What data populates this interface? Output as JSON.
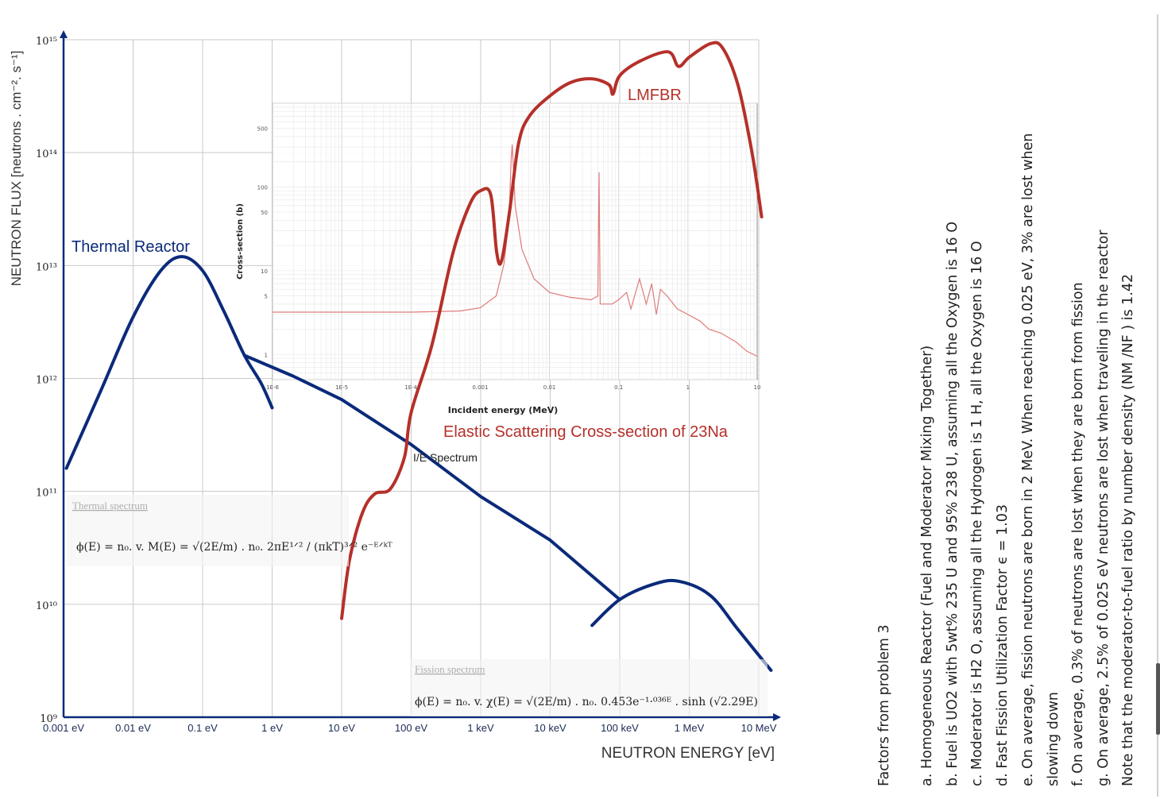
{
  "chart_data": {
    "type": "line",
    "xlabel": "NEUTRON ENERGY [eV]",
    "ylabel": "NEUTRON FLUX [neutrons . cm⁻². s⁻¹]",
    "x_scale": "log",
    "y_scale": "log",
    "xlim": [
      0.001,
      10000000
    ],
    "ylim": [
      1000000000,
      1000000000000000
    ],
    "x_ticks": [
      "0.001 eV",
      "0.01 eV",
      "0.1 eV",
      "1 eV",
      "10 eV",
      "100 eV",
      "1 keV",
      "10 keV",
      "100 keV",
      "1 MeV",
      "10 MeV"
    ],
    "y_ticks": [
      "10⁹",
      "10¹⁰",
      "10¹¹",
      "10¹²",
      "10¹³",
      "10¹⁴",
      "10¹⁵"
    ],
    "grid": true,
    "series": [
      {
        "name": "Thermal Reactor",
        "color": "#0b2a7a",
        "points": [
          [
            0.0011,
            160000000000.0
          ],
          [
            0.0035,
            800000000000.0
          ],
          [
            0.01,
            3500000000000.0
          ],
          [
            0.025,
            9000000000000.0
          ],
          [
            0.05,
            12000000000000.0
          ],
          [
            0.1,
            9000000000000.0
          ],
          [
            0.2,
            4000000000000.0
          ],
          [
            0.4,
            1600000000000.0
          ],
          [
            0.7,
            900000000000.0
          ],
          [
            1.0,
            550000000000.0
          ]
        ]
      },
      {
        "name": "1/E Spectrum",
        "color": "#0b2a7a",
        "points": [
          [
            0.4,
            1600000000000.0
          ],
          [
            2,
            1050000000000.0
          ],
          [
            10,
            650000000000.0
          ],
          [
            100,
            260000000000.0
          ],
          [
            1000,
            90000000000.0
          ],
          [
            10000,
            37000000000.0
          ],
          [
            100000,
            11000000000.0
          ]
        ]
      },
      {
        "name": "Fission spectrum",
        "color": "#0b2a7a",
        "points": [
          [
            40000,
            6500000000.0
          ],
          [
            100000,
            11000000000.0
          ],
          [
            300000,
            15000000000.0
          ],
          [
            700000,
            16000000000.0
          ],
          [
            2000000,
            12000000000.0
          ],
          [
            5000000,
            6000000000.0
          ],
          [
            15000000,
            2600000000.0
          ]
        ]
      },
      {
        "name": "LMFBR",
        "color": "#b5302a",
        "points": [
          [
            10,
            7500000000.0
          ],
          [
            13,
            25000000000.0
          ],
          [
            20,
            65000000000.0
          ],
          [
            30,
            95000000000.0
          ],
          [
            50,
            105000000000.0
          ],
          [
            80,
            200000000000.0
          ],
          [
            100,
            500000000000.0
          ],
          [
            200,
            2000000000000.0
          ],
          [
            400,
            13000000000000.0
          ],
          [
            700,
            35000000000000.0
          ],
          [
            1000,
            46000000000000.0
          ],
          [
            1400,
            42000000000000.0
          ],
          [
            1700,
            13000000000000.0
          ],
          [
            2000,
            11000000000000.0
          ],
          [
            2600,
            30000000000000.0
          ],
          [
            3500,
            120000000000000.0
          ],
          [
            5000,
            210000000000000.0
          ],
          [
            10000,
            320000000000000.0
          ],
          [
            20000,
            420000000000000.0
          ],
          [
            40000,
            450000000000000.0
          ],
          [
            70000,
            400000000000000.0
          ],
          [
            80000,
            330000000000000.0
          ],
          [
            100000,
            480000000000000.0
          ],
          [
            200000,
            650000000000000.0
          ],
          [
            500000,
            780000000000000.0
          ],
          [
            700000,
            580000000000000.0
          ],
          [
            1000000,
            700000000000000.0
          ],
          [
            2000000,
            920000000000000.0
          ],
          [
            3000000,
            850000000000000.0
          ],
          [
            5000000,
            400000000000000.0
          ],
          [
            8000000,
            100000000000000.0
          ],
          [
            11000000,
            27000000000000.0
          ]
        ]
      }
    ],
    "annotations": [
      {
        "text": "Thermal Reactor",
        "color": "#0b2a7a"
      },
      {
        "text": "LMFBR",
        "color": "#b5302a"
      },
      {
        "text": "I/E Spectrum",
        "color": "#222222"
      },
      {
        "text": "Elastic Scattering Cross-section of 23Na",
        "color": "#b5302a"
      },
      {
        "text": "Thermal spectrum",
        "color": "#444444"
      },
      {
        "text": "Fission spectrum",
        "color": "#444444"
      }
    ],
    "formulas": {
      "thermal": "ϕ(E) = n₀. v. M(E) = √(2E/m) . n₀. 2πE¹ᐟ² / (πkT)³ᐟ² e⁻ᴱᐟᵏᵀ",
      "fission": "ϕ(E) = n₀. v. χ(E) = √(2E/m) . n₀. 0.453e⁻¹·⁰³⁶ᴱ . sinh (√2.29E)"
    },
    "inset": {
      "type": "line",
      "xlabel": "Incident energy (MeV)",
      "ylabel": "Cross-section (b)",
      "x_scale": "log",
      "y_scale": "log",
      "xlim": [
        1e-06,
        10
      ],
      "ylim": [
        0.5,
        1000
      ],
      "x_ticks": [
        "1E-6",
        "1E-5",
        "1E-4",
        "0.001",
        "0.01",
        "0.1",
        "1",
        "10"
      ],
      "y_ticks": [
        "1",
        "5",
        "10",
        "50",
        "100",
        "500"
      ],
      "series": [
        {
          "name": "Elastic Scattering Cross-section of 23Na",
          "color": "#e07a7a",
          "points": [
            [
              1e-06,
              3.2
            ],
            [
              0.0001,
              3.2
            ],
            [
              0.0005,
              3.3
            ],
            [
              0.001,
              3.6
            ],
            [
              0.0017,
              5
            ],
            [
              0.0022,
              12
            ],
            [
              0.0026,
              40
            ],
            [
              0.0028,
              220
            ],
            [
              0.0029,
              320
            ],
            [
              0.003,
              180
            ],
            [
              0.0032,
              60
            ],
            [
              0.004,
              18
            ],
            [
              0.006,
              8
            ],
            [
              0.01,
              5.5
            ],
            [
              0.02,
              4.8
            ],
            [
              0.04,
              4.5
            ],
            [
              0.05,
              5
            ],
            [
              0.052,
              150
            ],
            [
              0.054,
              4
            ],
            [
              0.08,
              4
            ],
            [
              0.1,
              4.5
            ],
            [
              0.13,
              5.5
            ],
            [
              0.15,
              3.5
            ],
            [
              0.2,
              8
            ],
            [
              0.25,
              4
            ],
            [
              0.3,
              7
            ],
            [
              0.35,
              3
            ],
            [
              0.4,
              6
            ],
            [
              0.5,
              5
            ],
            [
              0.7,
              3.5
            ],
            [
              1,
              3
            ],
            [
              1.5,
              2.5
            ],
            [
              2,
              2
            ],
            [
              3,
              1.8
            ],
            [
              5,
              1.4
            ],
            [
              7,
              1.1
            ],
            [
              10,
              0.95
            ]
          ]
        }
      ]
    }
  },
  "notes": {
    "header": "Factors from problem 3",
    "items": [
      "a. Homogeneous Reactor (Fuel and Moderator Mixing Together)",
      "b. Fuel is UO2 with 5wt% 235 U and 95% 238 U, assuming all the Oxygen is 16 O",
      "c. Moderator is H2 O, assuming all the Hydrogen is 1 H, all the Oxygen is 16 O",
      "d. Fast Fission Utilization Factor ϵ = 1.03",
      "e. On average, fission neutrons are born in 2 MeV. When reaching 0.025 eV, 3% are lost when",
      "slowing down",
      "f. On average, 0.3% of neutrons are lost when they are born from fission",
      "g. On average, 2.5% of 0.025 eV neutrons are lost when traveling in the reactor",
      "Note that the moderator-to-fuel ratio by number density (NM /NF ) is 1.42"
    ]
  }
}
